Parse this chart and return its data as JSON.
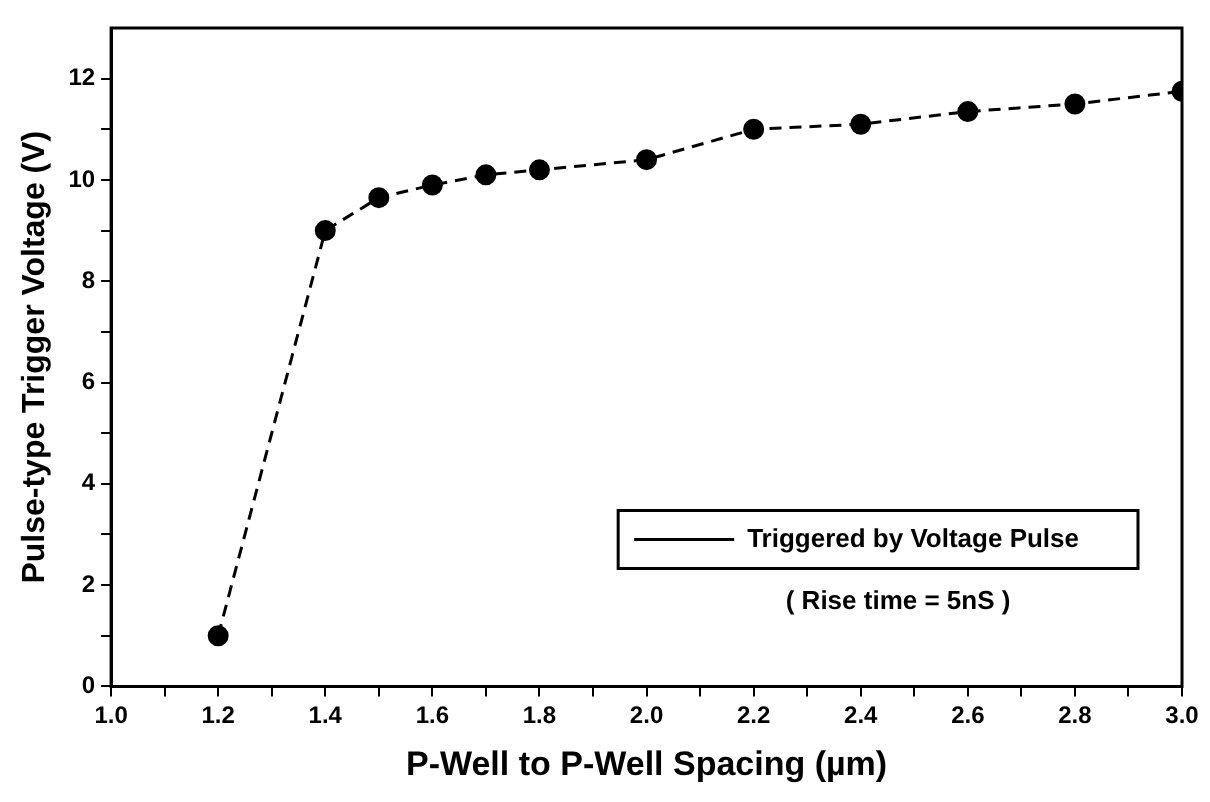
{
  "chart_data": {
    "type": "line",
    "xlabel": "P-Well to P-Well Spacing (µm)",
    "ylabel": "Pulse-type Trigger Voltage (V)",
    "x": [
      1.2,
      1.4,
      1.5,
      1.6,
      1.7,
      1.8,
      2.0,
      2.2,
      2.4,
      2.6,
      2.8,
      3.0
    ],
    "series": [
      {
        "name": "Triggered by Voltage Pulse",
        "color": "#000000",
        "values": [
          1.0,
          9.0,
          9.65,
          9.9,
          10.1,
          10.2,
          10.4,
          11.0,
          11.1,
          11.35,
          11.5,
          11.75
        ]
      }
    ],
    "xlim": [
      1.0,
      3.0
    ],
    "xticks": [
      {
        "value": 1.0,
        "label": "1.0"
      },
      {
        "value": 1.1,
        "label": null
      },
      {
        "value": 1.2,
        "label": "1.2"
      },
      {
        "value": 1.3,
        "label": null
      },
      {
        "value": 1.4,
        "label": "1.4"
      },
      {
        "value": 1.5,
        "label": null
      },
      {
        "value": 1.6,
        "label": "1.6"
      },
      {
        "value": 1.7,
        "label": null
      },
      {
        "value": 1.8,
        "label": "1.8"
      },
      {
        "value": 1.9,
        "label": null
      },
      {
        "value": 2.0,
        "label": "2.0"
      },
      {
        "value": 2.1,
        "label": null
      },
      {
        "value": 2.2,
        "label": "2.2"
      },
      {
        "value": 2.3,
        "label": null
      },
      {
        "value": 2.4,
        "label": "2.4"
      },
      {
        "value": 2.5,
        "label": null
      },
      {
        "value": 2.6,
        "label": "2.6"
      },
      {
        "value": 2.7,
        "label": null
      },
      {
        "value": 2.8,
        "label": "2.8"
      },
      {
        "value": 2.9,
        "label": null
      },
      {
        "value": 3.0,
        "label": "3.0"
      }
    ],
    "ylim": [
      0,
      13
    ],
    "yticks": [
      0,
      {
        "value": 1,
        "label": null
      },
      2,
      {
        "value": 3,
        "label": null
      },
      4,
      {
        "value": 5,
        "label": null
      },
      6,
      {
        "value": 7,
        "label": null
      },
      8,
      {
        "value": 9,
        "label": null
      },
      10,
      {
        "value": 11,
        "label": null
      },
      12
    ],
    "annotations": [
      "( Rise time = 5nS )"
    ],
    "legend": "bottom right",
    "grid": false,
    "marker": "circle",
    "line_style": "dashed"
  }
}
